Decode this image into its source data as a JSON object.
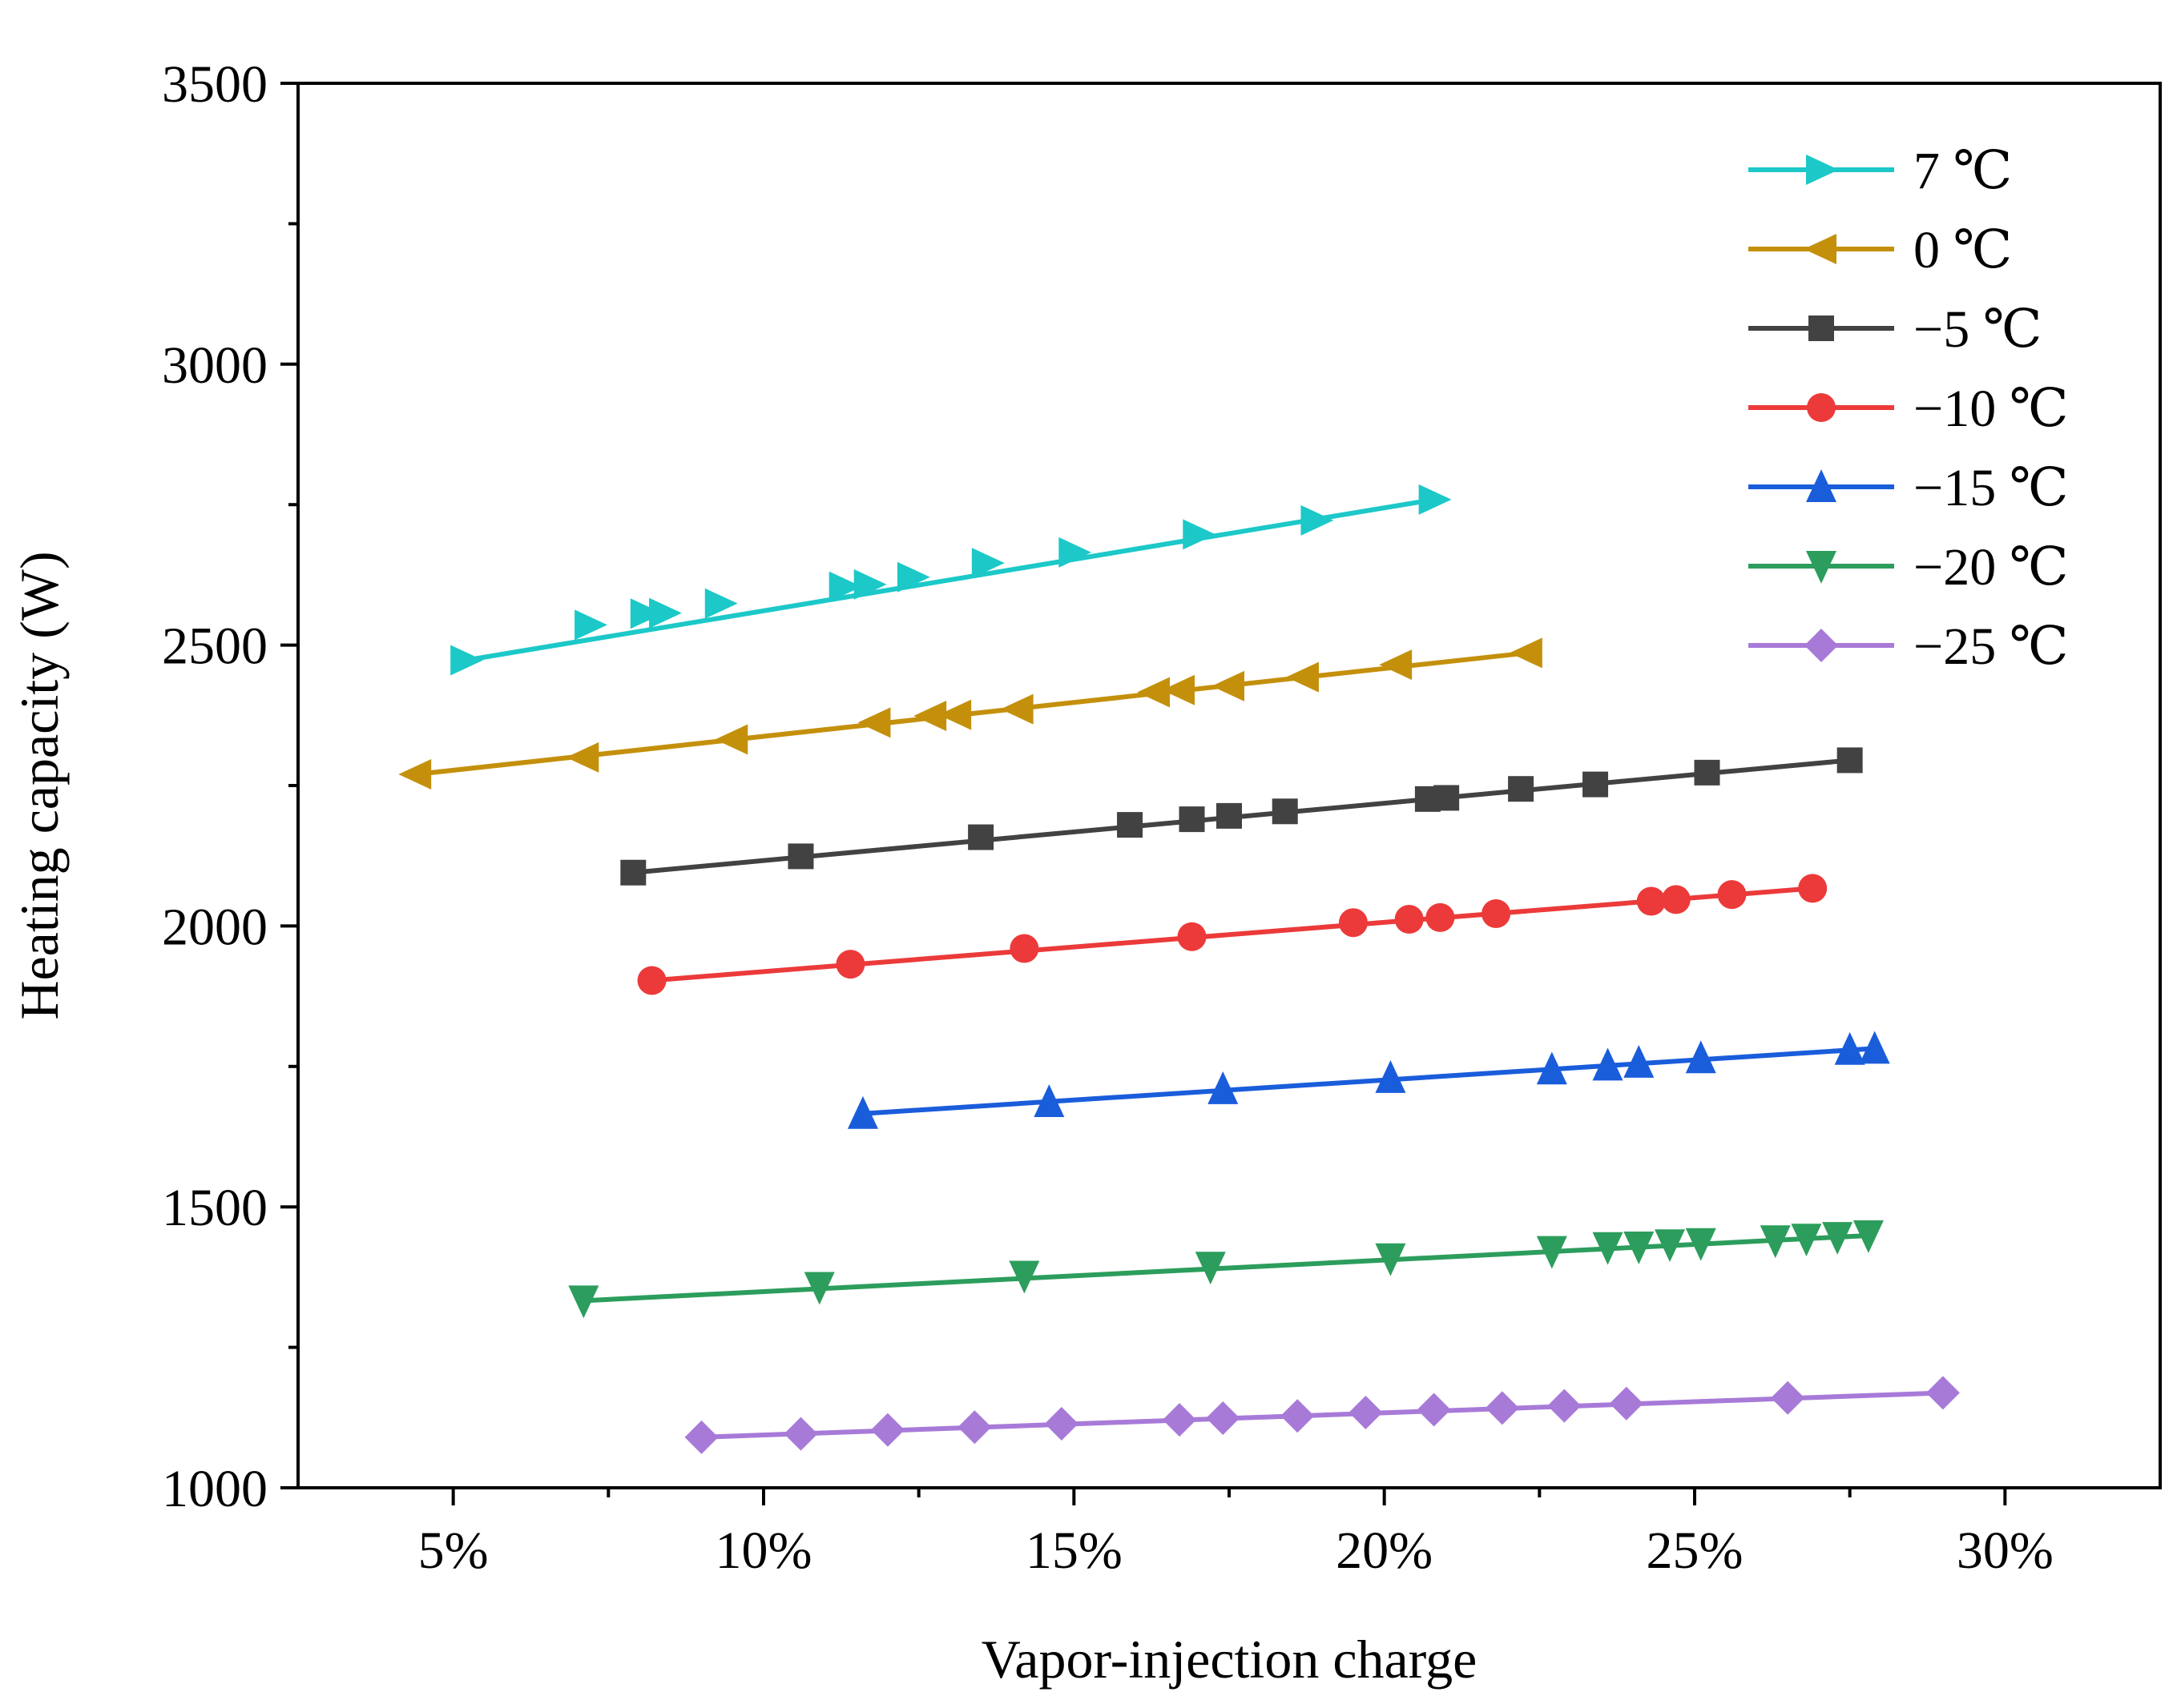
{
  "chart_data": {
    "type": "line",
    "title": "",
    "xlabel": "Vapor-injection charge",
    "ylabel": "Heating capacity (W)",
    "xlim": [
      2.5,
      32.5
    ],
    "ylim": [
      1000,
      3500
    ],
    "x_ticks": [
      5,
      10,
      15,
      20,
      25,
      30
    ],
    "x_tick_labels": [
      "5%",
      "10%",
      "15%",
      "20%",
      "25%",
      "30%"
    ],
    "y_ticks": [
      1000,
      1500,
      2000,
      2500,
      3000,
      3500
    ],
    "y_tick_labels": [
      "1000",
      "1500",
      "2000",
      "2500",
      "3000",
      "3500"
    ],
    "legend_position": "top-right",
    "grid": false,
    "series": [
      {
        "name": "7 ℃",
        "color": "#1cc8c8",
        "marker": "triangle-right",
        "x": [
          5.2,
          7.2,
          8.1,
          8.4,
          9.3,
          11.3,
          11.7,
          12.4,
          13.6,
          15.0,
          17.0,
          18.9,
          20.8
        ],
        "y": [
          2473,
          2536,
          2556,
          2557,
          2574,
          2604,
          2608,
          2621,
          2646,
          2665,
          2697,
          2722,
          2759
        ]
      },
      {
        "name": "0 ℃",
        "color": "#c4900c",
        "marker": "triangle-left",
        "x": [
          4.4,
          7.1,
          9.5,
          11.8,
          12.7,
          13.1,
          14.1,
          16.3,
          16.7,
          17.5,
          18.7,
          20.2,
          22.3
        ],
        "y": [
          2270,
          2300,
          2332,
          2362,
          2374,
          2376,
          2386,
          2416,
          2420,
          2427,
          2443,
          2465,
          2486
        ]
      },
      {
        "name": "−5 ℃",
        "color": "#424242",
        "marker": "square",
        "x": [
          7.9,
          10.6,
          13.5,
          15.9,
          16.9,
          17.5,
          18.4,
          20.7,
          21.0,
          22.2,
          23.4,
          25.2,
          27.5
        ],
        "y": [
          2095,
          2124,
          2158,
          2180,
          2190,
          2196,
          2204,
          2226,
          2228,
          2244,
          2252,
          2273,
          2295
        ]
      },
      {
        "name": "−10 ℃",
        "color": "#ec3a3a",
        "marker": "circle",
        "x": [
          8.2,
          11.4,
          14.2,
          16.9,
          19.5,
          20.4,
          20.9,
          21.8,
          24.3,
          24.7,
          25.6,
          26.9
        ],
        "y": [
          1903,
          1932,
          1960,
          1981,
          2006,
          2012,
          2015,
          2022,
          2044,
          2047,
          2056,
          2067
        ]
      },
      {
        "name": "−15 ℃",
        "color": "#1a5ddb",
        "marker": "triangle-up",
        "x": [
          11.6,
          14.6,
          17.4,
          20.1,
          22.7,
          23.6,
          24.1,
          25.1,
          27.5,
          27.9
        ],
        "y": [
          1666,
          1687,
          1710,
          1730,
          1745,
          1752,
          1757,
          1765,
          1780,
          1782
        ]
      },
      {
        "name": "−20 ℃",
        "color": "#2c9d5c",
        "marker": "triangle-down",
        "x": [
          7.1,
          10.9,
          14.2,
          17.2,
          20.1,
          22.7,
          23.6,
          24.1,
          24.6,
          25.1,
          26.3,
          26.8,
          27.3,
          27.8
        ],
        "y": [
          1333,
          1357,
          1377,
          1393,
          1408,
          1421,
          1428,
          1429,
          1433,
          1435,
          1440,
          1443,
          1446,
          1449
        ]
      },
      {
        "name": "−25 ℃",
        "color": "#a87ad8",
        "marker": "diamond",
        "x": [
          9.0,
          10.6,
          12.0,
          13.4,
          14.8,
          16.7,
          17.4,
          18.6,
          19.7,
          20.8,
          21.9,
          22.9,
          23.9,
          26.5,
          29.0
        ],
        "y": [
          1090,
          1096,
          1103,
          1108,
          1114,
          1121,
          1124,
          1128,
          1134,
          1139,
          1142,
          1146,
          1150,
          1160,
          1169
        ]
      }
    ]
  }
}
